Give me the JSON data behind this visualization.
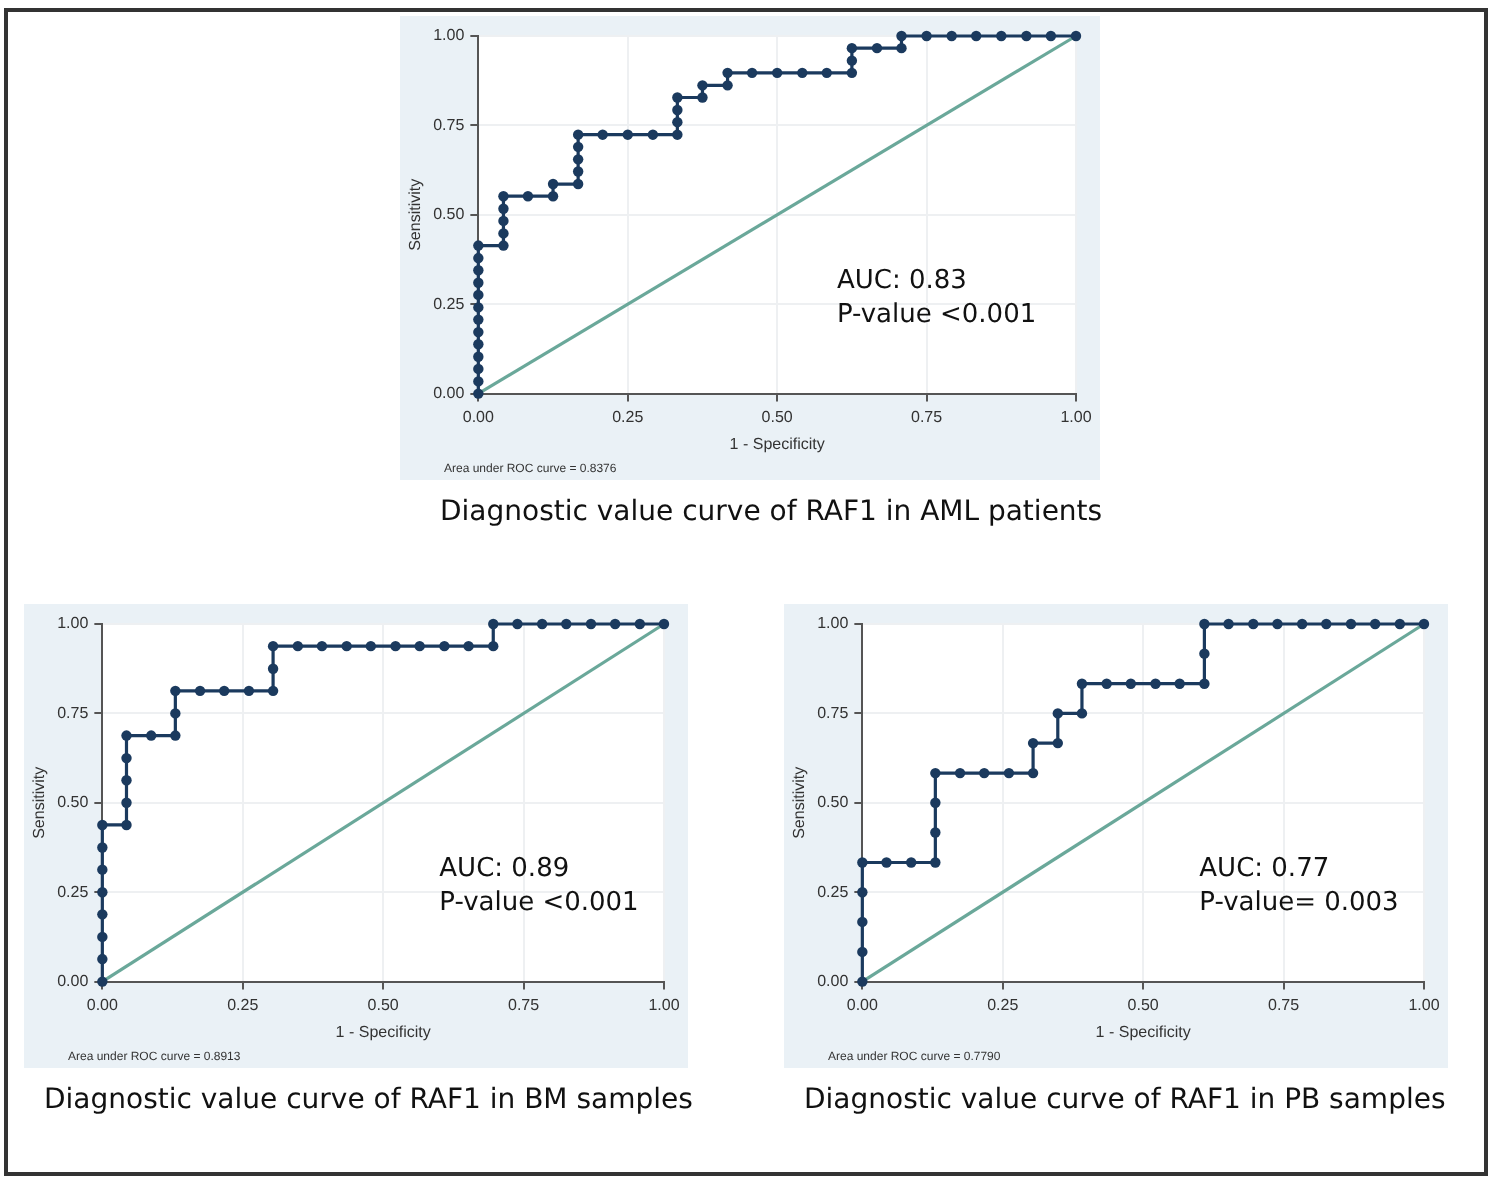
{
  "chart_data": [
    {
      "type": "line",
      "title": "Diagnostic value curve of RAF1 in AML patients",
      "xlabel": "1 - Specificity",
      "ylabel": "Sensitivity",
      "xlim": [
        0,
        1
      ],
      "ylim": [
        0,
        1
      ],
      "xticks": [
        {
          "value": 0,
          "label": "0.00"
        },
        {
          "value": 0.25,
          "label": "0.25"
        },
        {
          "value": 0.5,
          "label": "0.50"
        },
        {
          "value": 0.75,
          "label": "0.75"
        },
        {
          "value": 1,
          "label": "1.00"
        }
      ],
      "yticks": [
        {
          "value": 0,
          "label": "0.00"
        },
        {
          "value": 0.25,
          "label": "0.25"
        },
        {
          "value": 0.5,
          "label": "0.50"
        },
        {
          "value": 0.75,
          "label": "0.75"
        },
        {
          "value": 1,
          "label": "1.00"
        }
      ],
      "grid": true,
      "marker": "circle",
      "annotations": [
        "AUC: 0.83",
        "P-value <0.001",
        "Area under ROC curve = 0.8376"
      ],
      "series": [
        {
          "color": "#1b3a5e",
          "x": [
            0,
            0,
            0,
            0,
            0,
            0,
            0,
            0,
            0,
            0,
            0,
            0,
            0,
            0.042,
            0.042,
            0.042,
            0.042,
            0.042,
            0.083,
            0.125,
            0.125,
            0.167,
            0.167,
            0.167,
            0.167,
            0.167,
            0.208,
            0.25,
            0.292,
            0.333,
            0.333,
            0.333,
            0.333,
            0.375,
            0.375,
            0.417,
            0.417,
            0.458,
            0.5,
            0.542,
            0.583,
            0.625,
            0.625,
            0.625,
            0.667,
            0.708,
            0.708,
            0.75,
            0.792,
            0.833,
            0.875,
            0.917,
            0.958,
            1
          ],
          "values": [
            0,
            0.034,
            0.069,
            0.103,
            0.138,
            0.172,
            0.207,
            0.241,
            0.276,
            0.31,
            0.345,
            0.379,
            0.414,
            0.414,
            0.448,
            0.483,
            0.517,
            0.552,
            0.552,
            0.552,
            0.586,
            0.586,
            0.621,
            0.655,
            0.69,
            0.724,
            0.724,
            0.724,
            0.724,
            0.724,
            0.759,
            0.793,
            0.828,
            0.828,
            0.862,
            0.862,
            0.897,
            0.897,
            0.897,
            0.897,
            0.897,
            0.897,
            0.931,
            0.966,
            0.966,
            0.966,
            1,
            1,
            1,
            1,
            1,
            1,
            1,
            1
          ]
        },
        {
          "color": "#6aa89a",
          "marker": "none",
          "x": [
            0,
            1
          ],
          "values": [
            0,
            1
          ]
        }
      ]
    },
    {
      "type": "line",
      "title": "Diagnostic value curve of RAF1 in BM samples",
      "xlabel": "1 - Specificity",
      "ylabel": "Sensitivity",
      "xlim": [
        0,
        1
      ],
      "ylim": [
        0,
        1
      ],
      "xticks": [
        {
          "value": 0,
          "label": "0.00"
        },
        {
          "value": 0.25,
          "label": "0.25"
        },
        {
          "value": 0.5,
          "label": "0.50"
        },
        {
          "value": 0.75,
          "label": "0.75"
        },
        {
          "value": 1,
          "label": "1.00"
        }
      ],
      "yticks": [
        {
          "value": 0,
          "label": "0.00"
        },
        {
          "value": 0.25,
          "label": "0.25"
        },
        {
          "value": 0.5,
          "label": "0.50"
        },
        {
          "value": 0.75,
          "label": "0.75"
        },
        {
          "value": 1,
          "label": "1.00"
        }
      ],
      "grid": true,
      "marker": "circle",
      "annotations": [
        "AUC: 0.89",
        "P-value <0.001",
        "Area under ROC curve = 0.8913"
      ],
      "series": [
        {
          "color": "#1b3a5e",
          "x": [
            0,
            0,
            0,
            0,
            0,
            0,
            0,
            0,
            0.043,
            0.043,
            0.043,
            0.043,
            0.043,
            0.087,
            0.13,
            0.13,
            0.13,
            0.174,
            0.217,
            0.261,
            0.304,
            0.304,
            0.304,
            0.348,
            0.391,
            0.435,
            0.478,
            0.522,
            0.565,
            0.609,
            0.652,
            0.696,
            0.696,
            0.739,
            0.783,
            0.826,
            0.87,
            0.913,
            0.957,
            1
          ],
          "values": [
            0,
            0.063,
            0.125,
            0.188,
            0.25,
            0.313,
            0.375,
            0.438,
            0.438,
            0.5,
            0.563,
            0.625,
            0.688,
            0.688,
            0.688,
            0.75,
            0.813,
            0.813,
            0.813,
            0.813,
            0.813,
            0.875,
            0.938,
            0.938,
            0.938,
            0.938,
            0.938,
            0.938,
            0.938,
            0.938,
            0.938,
            0.938,
            1,
            1,
            1,
            1,
            1,
            1,
            1,
            1
          ]
        },
        {
          "color": "#6aa89a",
          "marker": "none",
          "x": [
            0,
            1
          ],
          "values": [
            0,
            1
          ]
        }
      ]
    },
    {
      "type": "line",
      "title": "Diagnostic value curve of RAF1 in PB samples",
      "xlabel": "1 - Specificity",
      "ylabel": "Sensitivity",
      "xlim": [
        0,
        1
      ],
      "ylim": [
        0,
        1
      ],
      "xticks": [
        {
          "value": 0,
          "label": "0.00"
        },
        {
          "value": 0.25,
          "label": "0.25"
        },
        {
          "value": 0.5,
          "label": "0.50"
        },
        {
          "value": 0.75,
          "label": "0.75"
        },
        {
          "value": 1,
          "label": "1.00"
        }
      ],
      "yticks": [
        {
          "value": 0,
          "label": "0.00"
        },
        {
          "value": 0.25,
          "label": "0.25"
        },
        {
          "value": 0.5,
          "label": "0.50"
        },
        {
          "value": 0.75,
          "label": "0.75"
        },
        {
          "value": 1,
          "label": "1.00"
        }
      ],
      "grid": true,
      "marker": "circle",
      "annotations": [
        "AUC: 0.77",
        "P-value= 0.003",
        "Area under ROC curve = 0.7790"
      ],
      "series": [
        {
          "color": "#1b3a5e",
          "x": [
            0,
            0,
            0,
            0,
            0,
            0.043,
            0.087,
            0.13,
            0.13,
            0.13,
            0.13,
            0.174,
            0.217,
            0.261,
            0.304,
            0.304,
            0.348,
            0.348,
            0.391,
            0.391,
            0.435,
            0.478,
            0.522,
            0.565,
            0.609,
            0.609,
            0.609,
            0.652,
            0.696,
            0.739,
            0.783,
            0.826,
            0.87,
            0.913,
            0.957,
            1
          ],
          "values": [
            0,
            0.083,
            0.167,
            0.25,
            0.333,
            0.333,
            0.333,
            0.333,
            0.417,
            0.5,
            0.583,
            0.583,
            0.583,
            0.583,
            0.583,
            0.667,
            0.667,
            0.75,
            0.75,
            0.833,
            0.833,
            0.833,
            0.833,
            0.833,
            0.833,
            0.917,
            1,
            1,
            1,
            1,
            1,
            1,
            1,
            1,
            1,
            1
          ]
        },
        {
          "color": "#6aa89a",
          "marker": "none",
          "x": [
            0,
            1
          ],
          "values": [
            0,
            1
          ]
        }
      ]
    }
  ]
}
